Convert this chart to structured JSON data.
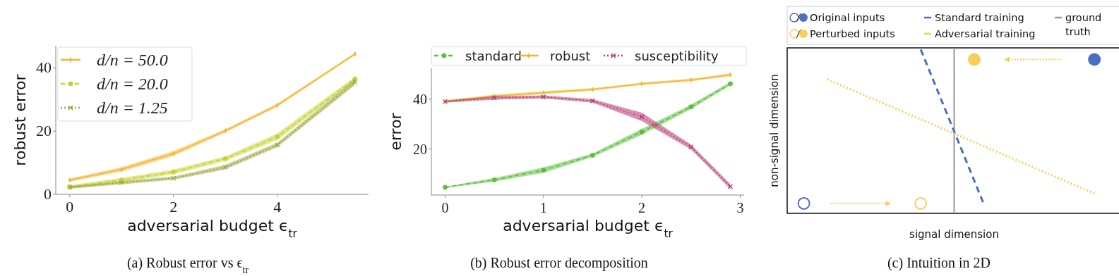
{
  "chart_data": [
    {
      "type": "line",
      "title": "(a) Robust error vs ϵ$_{tr}$",
      "xlabel": "adversarial budget ϵ$_{tr}$",
      "ylabel": "robust error",
      "x": [
        0,
        1,
        2,
        3,
        4,
        5.5
      ],
      "xlim": [
        -0.27,
        5.76
      ],
      "xticks": [
        0,
        2,
        4
      ],
      "ylim": [
        0,
        47
      ],
      "yticks": [
        0,
        20,
        40
      ],
      "grid": false,
      "legend": "top left",
      "series": [
        {
          "name": "d/n = 50.0",
          "color": "#f4b731",
          "marker": "diamond",
          "line_style": "solid",
          "values": [
            4.5,
            7.9,
            12.9,
            20.1,
            28.2,
            44.4
          ],
          "lower": [
            4.0,
            7.2,
            12.1,
            19.6,
            27.7,
            44.0
          ],
          "upper": [
            5.0,
            8.6,
            13.7,
            20.6,
            28.7,
            44.8
          ]
        },
        {
          "name": "d/n = 20.0",
          "color": "#c5d32c",
          "marker": "circle",
          "line_style": "dashed",
          "values": [
            2.4,
            4.5,
            7.1,
            11.3,
            18.2,
            36.5
          ],
          "lower": [
            1.9,
            3.8,
            6.4,
            10.6,
            17.2,
            35.8
          ],
          "upper": [
            2.9,
            5.2,
            7.8,
            12.0,
            19.2,
            37.2
          ]
        },
        {
          "name": "d/n = 1.25",
          "color": "#9aa43a",
          "marker": "cross",
          "line_style": "dotted",
          "values": [
            2.2,
            3.7,
            5.1,
            8.6,
            15.6,
            35.5
          ],
          "lower": [
            1.8,
            3.2,
            4.6,
            7.9,
            14.9,
            34.6
          ],
          "upper": [
            2.6,
            4.2,
            5.6,
            9.3,
            16.3,
            36.4
          ]
        }
      ]
    },
    {
      "type": "line",
      "title": "(b) Robust error decomposition",
      "xlabel": "adversarial budget ϵ$_{tr}$",
      "ylabel": "error",
      "x": [
        0,
        0.5,
        1,
        1.5,
        2,
        2.5,
        2.9
      ],
      "xlim": [
        -0.14,
        3.04
      ],
      "xticks": [
        0,
        1,
        2,
        3
      ],
      "ylim": [
        1.5,
        52.4
      ],
      "yticks": [
        20,
        40
      ],
      "grid": false,
      "legend": "top",
      "series": [
        {
          "name": "standard",
          "color": "#5bbf3a",
          "marker": "circle",
          "line_style": "dashed",
          "values": [
            4.6,
            7.6,
            11.5,
            17.5,
            26.9,
            36.9,
            46.2
          ],
          "lower": [
            4.3,
            6.9,
            10.4,
            16.8,
            25.7,
            36.0,
            45.5
          ],
          "upper": [
            4.9,
            8.3,
            12.6,
            18.2,
            28.1,
            37.8,
            46.9
          ]
        },
        {
          "name": "robust",
          "color": "#f4b731",
          "marker": "diamond",
          "line_style": "solid",
          "values": [
            39.2,
            41.2,
            42.6,
            43.9,
            46.2,
            47.7,
            49.8
          ],
          "lower": [
            38.7,
            40.6,
            42.0,
            43.4,
            45.7,
            47.2,
            49.2
          ],
          "upper": [
            39.7,
            41.8,
            43.2,
            44.4,
            46.7,
            48.2,
            50.4
          ]
        },
        {
          "name": "susceptibility",
          "color": "#b5386e",
          "marker": "cross",
          "line_style": "dotted",
          "values": [
            39.0,
            40.5,
            40.9,
            39.3,
            32.9,
            20.8,
            4.9
          ],
          "lower": [
            38.6,
            39.8,
            40.3,
            38.6,
            31.2,
            19.8,
            3.9
          ],
          "upper": [
            39.4,
            41.2,
            41.5,
            40.0,
            34.6,
            21.8,
            5.9
          ]
        }
      ]
    },
    {
      "type": "other",
      "title": "(c) Intuition in 2D",
      "xlabel": "signal dimension",
      "ylabel": "non-signal dimension",
      "annotations": [
        "Original inputs",
        "Perturbed inputs",
        "Standard training",
        "Adversarial training",
        "ground truth"
      ]
    }
  ]
}
